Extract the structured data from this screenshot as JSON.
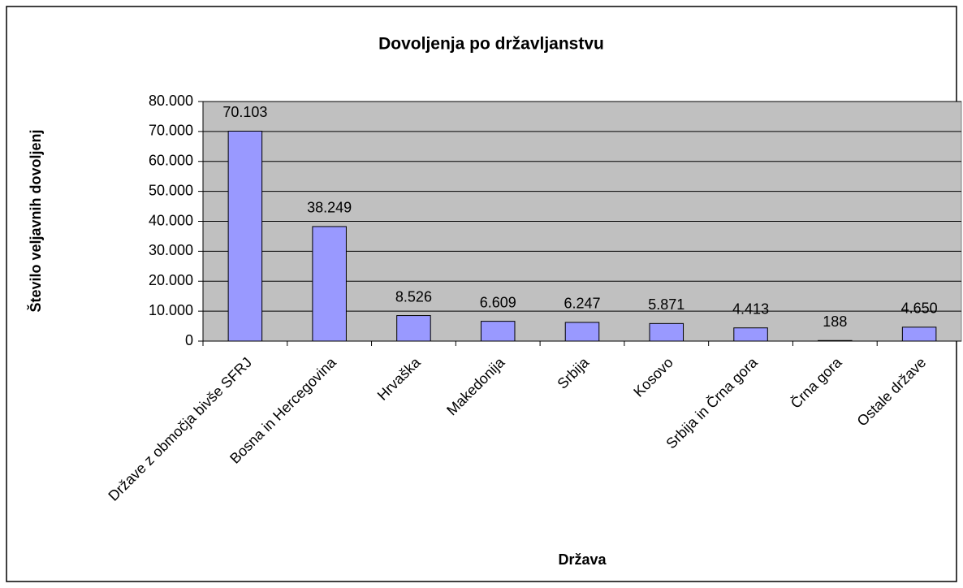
{
  "chart_data": {
    "type": "bar",
    "title": "Dovoljenja po državljanstvu",
    "x_label": "Država",
    "y_label": "Število veljavnih dovoljenj",
    "categories": [
      "Države z območja bivše SFRJ",
      "Bosna in Hercegovina",
      "Hrvaška",
      "Makedonija",
      "Srbija",
      "Kosovo",
      "Srbija in Črna gora",
      "Črna gora",
      "Ostale države"
    ],
    "values": [
      70103,
      38249,
      8526,
      6609,
      6247,
      5871,
      4413,
      188,
      4650
    ],
    "value_labels": [
      "70.103",
      "38.249",
      "8.526",
      "6.609",
      "6.247",
      "5.871",
      "4.413",
      "188",
      "4.650"
    ],
    "color": "#9999ff",
    "ylim": [
      0,
      80000
    ],
    "yticks": [
      0,
      {
        "value": 10000,
        "label": "10.000"
      },
      {
        "value": 20000,
        "label": "20.000"
      },
      {
        "value": 30000,
        "label": "30.000"
      },
      {
        "value": 40000,
        "label": "40.000"
      },
      {
        "value": 50000,
        "label": "50.000"
      },
      {
        "value": 60000,
        "label": "60.000"
      },
      {
        "value": 70000,
        "label": "70.000"
      },
      {
        "value": 80000,
        "label": "80.000"
      }
    ],
    "grid": true
  }
}
